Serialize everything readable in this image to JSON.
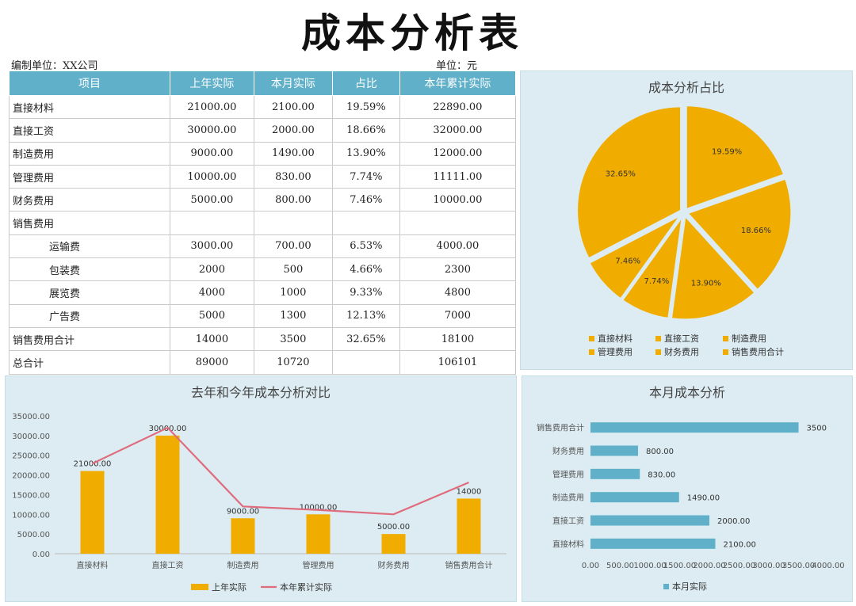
{
  "header": {
    "title": "成本分析表",
    "unit_left": "编制单位：XX公司",
    "unit_right": "单位：元"
  },
  "table": {
    "columns": [
      "项目",
      "上年实际",
      "本月实际",
      "占比",
      "本年累计实际"
    ],
    "rows": [
      {
        "item": "直接材料",
        "sub": false,
        "cells": [
          "21000.00",
          "2100.00",
          "19.59%",
          "22890.00"
        ]
      },
      {
        "item": "直接工资",
        "sub": false,
        "cells": [
          "30000.00",
          "2000.00",
          "18.66%",
          "32000.00"
        ]
      },
      {
        "item": "制造费用",
        "sub": false,
        "cells": [
          "9000.00",
          "1490.00",
          "13.90%",
          "12000.00"
        ]
      },
      {
        "item": "管理费用",
        "sub": false,
        "cells": [
          "10000.00",
          "830.00",
          "7.74%",
          "11111.00"
        ]
      },
      {
        "item": "财务费用",
        "sub": false,
        "cells": [
          "5000.00",
          "800.00",
          "7.46%",
          "10000.00"
        ]
      },
      {
        "item": "销售费用",
        "sub": false,
        "cells": [
          "",
          "",
          "",
          ""
        ]
      },
      {
        "item": "运输费",
        "sub": true,
        "cells": [
          "3000.00",
          "700.00",
          "6.53%",
          "4000.00"
        ]
      },
      {
        "item": "包装费",
        "sub": true,
        "cells": [
          "2000",
          "500",
          "4.66%",
          "2300"
        ]
      },
      {
        "item": "展览费",
        "sub": true,
        "cells": [
          "4000",
          "1000",
          "9.33%",
          "4800"
        ]
      },
      {
        "item": "广告费",
        "sub": true,
        "cells": [
          "5000",
          "1300",
          "12.13%",
          "7000"
        ]
      },
      {
        "item": "销售费用合计",
        "sub": false,
        "cells": [
          "14000",
          "3500",
          "32.65%",
          "18100"
        ]
      },
      {
        "item": "总合计",
        "sub": false,
        "cells": [
          "89000",
          "10720",
          "",
          "106101"
        ]
      }
    ]
  },
  "colors": {
    "header_blue": "#5fb0c8",
    "panel_bg": "#dcecf2",
    "orange": "#f0ad00",
    "line_pink": "#e06b7d",
    "bar_blue": "#5fb0c8"
  },
  "chart_data": [
    {
      "type": "pie",
      "title": "成本分析占比",
      "categories": [
        "直接材料",
        "直接工资",
        "制造费用",
        "管理费用",
        "财务费用",
        "销售费用合计"
      ],
      "values": [
        19.59,
        18.66,
        13.9,
        7.74,
        7.46,
        32.65
      ],
      "labels": [
        "19.59%",
        "18.66%",
        "13.90%",
        "7.74%",
        "7.46%",
        "32.65%"
      ],
      "legend": "bottom"
    },
    {
      "type": "bar",
      "title": "去年和今年成本分析对比",
      "categories": [
        "直接材料",
        "直接工资",
        "制造费用",
        "管理费用",
        "财务费用",
        "销售费用合计"
      ],
      "series": [
        {
          "name": "上年实际",
          "type": "bar",
          "values": [
            21000,
            30000,
            9000,
            10000,
            5000,
            14000
          ]
        },
        {
          "name": "本年累计实际",
          "type": "line",
          "values": [
            22890,
            32000,
            12000,
            11111,
            10000,
            18100
          ]
        }
      ],
      "data_labels": [
        "21000.00",
        "30000.00",
        "9000.00",
        "10000.00",
        "5000.00",
        "14000"
      ],
      "yticks": [
        "0.00",
        "5000.00",
        "10000.00",
        "15000.00",
        "20000.00",
        "25000.00",
        "30000.00",
        "35000.00"
      ],
      "ylim": [
        0,
        35000
      ],
      "legend": "bottom"
    },
    {
      "type": "bar",
      "orientation": "horizontal",
      "title": "本月成本分析",
      "categories": [
        "直接材料",
        "直接工资",
        "制造费用",
        "管理费用",
        "财务费用",
        "销售费用合计"
      ],
      "series": [
        {
          "name": "本月实际",
          "values": [
            2100,
            2000,
            1490,
            830,
            800,
            3500
          ]
        }
      ],
      "data_labels": [
        "2100.00",
        "2000.00",
        "1490.00",
        "830.00",
        "800.00",
        "3500"
      ],
      "xticks": [
        "0.00",
        "500.00",
        "1000.00",
        "1500.00",
        "2000.00",
        "2500.00",
        "3000.00",
        "3500.00",
        "4000.00"
      ],
      "xlim": [
        0,
        4000
      ],
      "legend": "bottom"
    }
  ]
}
